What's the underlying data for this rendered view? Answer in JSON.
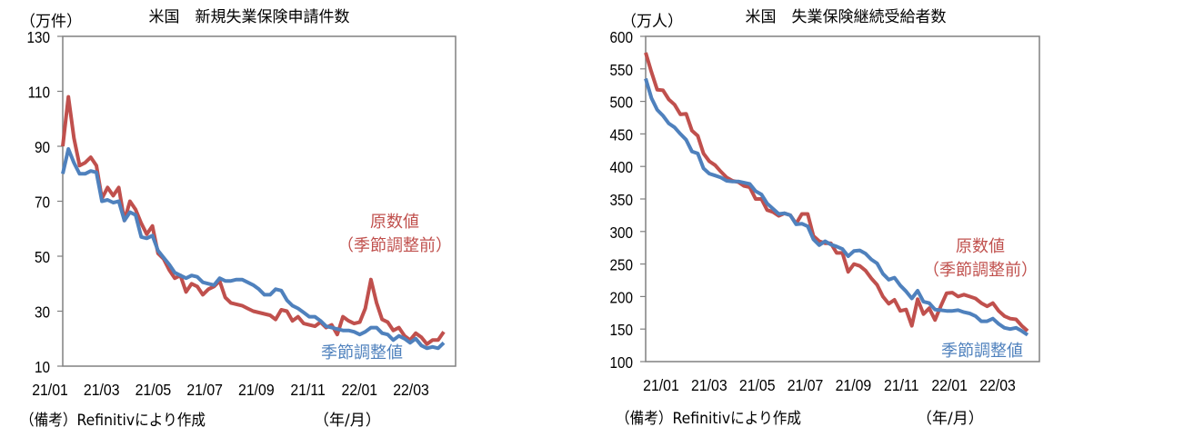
{
  "colors": {
    "raw": "#c0504d",
    "seasonally_adjusted": "#4f81bd",
    "axis": "#7f7f7f"
  },
  "chart_data": [
    {
      "type": "line",
      "title": "米国　新規失業保険申請件数",
      "ylabel": "（万件）",
      "xlabel": "（年/月）",
      "note": "（備考）Refinitivにより作成",
      "ylim": [
        10,
        130
      ],
      "yticks": [
        "10",
        "30",
        "50",
        "70",
        "90",
        "110",
        "130"
      ],
      "xtick_labels": [
        "21/01",
        "21/03",
        "21/05",
        "21/07",
        "21/09",
        "21/11",
        "22/01",
        "22/03"
      ],
      "grid": false,
      "frequency": "weekly",
      "series": [
        {
          "name": "原数値",
          "name2": "（季節調整前）",
          "color": "#c0504d",
          "values": [
            90,
            108,
            93,
            83,
            84,
            86,
            83,
            71,
            75,
            72,
            75,
            63,
            70,
            67,
            62,
            58,
            61,
            51,
            49,
            45,
            42,
            43,
            37,
            40,
            39,
            36,
            38,
            39,
            41,
            35,
            33,
            32.5,
            32,
            31,
            30,
            29.5,
            29,
            28.5,
            27,
            30.5,
            30,
            26.5,
            28,
            25.5,
            25,
            24.5,
            26,
            24,
            25,
            21.5,
            28,
            26.5,
            25.5,
            26,
            31,
            41.5,
            33,
            27,
            26,
            23,
            24,
            21,
            19.5,
            22,
            20.5,
            18,
            19.5,
            19.5,
            22.5
          ]
        },
        {
          "name": "季節調整値",
          "color": "#4f81bd",
          "values": [
            80,
            89,
            84,
            80,
            80,
            81,
            80.5,
            70,
            70.5,
            69.5,
            70,
            63,
            66,
            65,
            57,
            56.5,
            57.5,
            52,
            49.5,
            47,
            44,
            43,
            42,
            43,
            42.5,
            40.5,
            40,
            39.5,
            42,
            41,
            41,
            41.5,
            41.5,
            40.5,
            39.5,
            38,
            36,
            36,
            38,
            37.5,
            34,
            32,
            31,
            29.5,
            28,
            28,
            26.5,
            24.5,
            24,
            23.5,
            23,
            23,
            22.5,
            21.5,
            22.5,
            24,
            24,
            22,
            21.5,
            19.5,
            21,
            20,
            18.5,
            20,
            17.5,
            16.5,
            17,
            16.5,
            18.5
          ]
        }
      ]
    },
    {
      "type": "line",
      "title": "米国　失業保険継続受給者数",
      "ylabel": "（万人）",
      "xlabel": "（年/月）",
      "note": "（備考）Refinitivにより作成",
      "ylim": [
        100,
        600
      ],
      "yticks": [
        "100",
        "150",
        "200",
        "250",
        "300",
        "350",
        "400",
        "450",
        "500",
        "550",
        "600"
      ],
      "xtick_labels": [
        "21/01",
        "21/03",
        "21/05",
        "21/07",
        "21/09",
        "21/11",
        "22/01",
        "22/03"
      ],
      "grid": false,
      "frequency": "weekly",
      "series": [
        {
          "name": "原数値",
          "name2": "（季節調整前）",
          "color": "#c0504d",
          "values": [
            575,
            545,
            518,
            517,
            503,
            495,
            480,
            481,
            455,
            447,
            420,
            408,
            402,
            392,
            383,
            378,
            376,
            370,
            368,
            350,
            350,
            333,
            330,
            324,
            328,
            325,
            312,
            327,
            327,
            293,
            285,
            282,
            282,
            267,
            267,
            238,
            250,
            247,
            240,
            228,
            218,
            200,
            189,
            195,
            178,
            180,
            155,
            196,
            173,
            182,
            164,
            185,
            205,
            206,
            200,
            203,
            200,
            197,
            190,
            185,
            190,
            178,
            170,
            166,
            165,
            155,
            147
          ]
        },
        {
          "name": "季節調整値",
          "color": "#4f81bd",
          "values": [
            535,
            505,
            487,
            478,
            466,
            460,
            450,
            441,
            423,
            420,
            397,
            389,
            386,
            383,
            378,
            377,
            377,
            375,
            373,
            362,
            357,
            343,
            335,
            327,
            328,
            325,
            311,
            312,
            308,
            288,
            279,
            285,
            280,
            277,
            273,
            262,
            270,
            271,
            266,
            257,
            251,
            235,
            226,
            229,
            217,
            208,
            197,
            209,
            192,
            190,
            180,
            179,
            178,
            178,
            179,
            176,
            174,
            170,
            162,
            162,
            166,
            158,
            152,
            150,
            152,
            147,
            141
          ]
        }
      ]
    }
  ]
}
